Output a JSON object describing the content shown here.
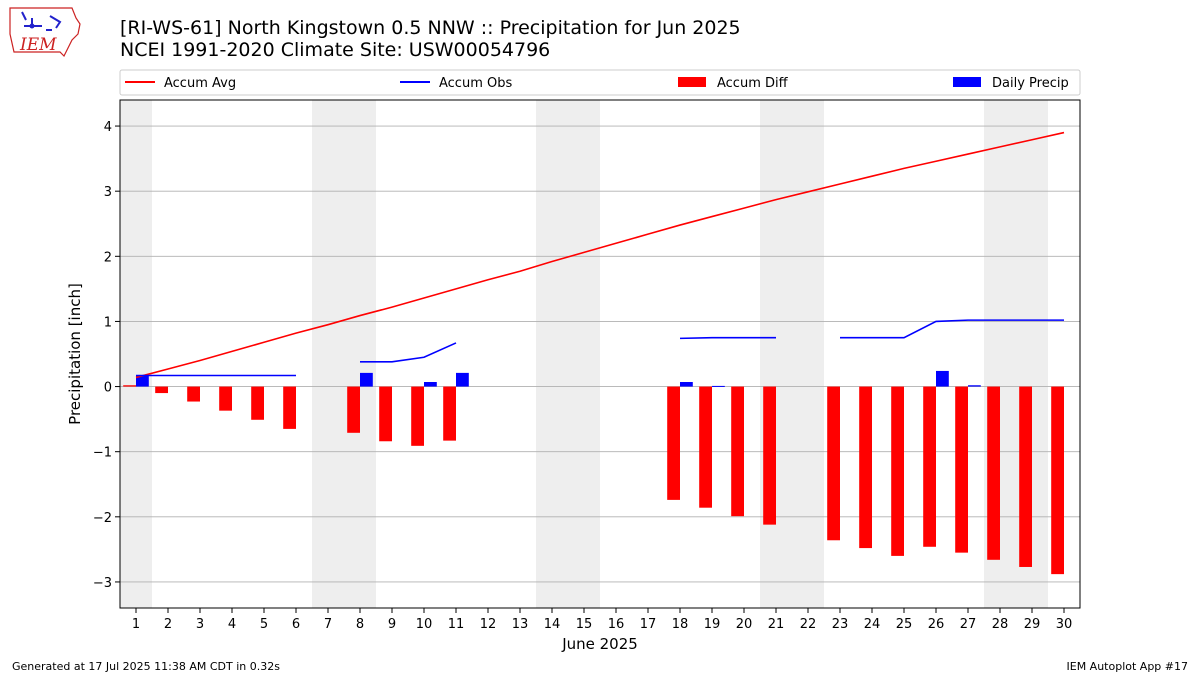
{
  "header": {
    "title_line1": "[RI-WS-61] North Kingstown 0.5 NNW :: Precipitation for Jun 2025",
    "title_line2": "NCEI 1991-2020 Climate Site: USW00054796"
  },
  "logo": {
    "text": "IEM",
    "icon": "iowa-state-logo"
  },
  "footer": {
    "generated": "Generated at 17 Jul 2025 11:38 AM CDT in 0.32s",
    "app": "IEM Autoplot App #17"
  },
  "colors": {
    "accum_avg": "#ff0000",
    "accum_obs": "#0000ff",
    "accum_diff": "#ff0000",
    "daily_precip": "#0000ff",
    "weekend_shade": "#eeeeee",
    "grid": "#b0b0b0"
  },
  "chart_data": {
    "type": "bar",
    "xlabel": "June 2025",
    "ylabel": "Precipitation [inch]",
    "ylim": [
      -3.4,
      4.4
    ],
    "yticks": [
      4,
      3,
      2,
      1,
      0,
      -1,
      -2,
      -3
    ],
    "ytick_labels": [
      "4",
      "3",
      "2",
      "1",
      "0",
      "−1",
      "−2",
      "−3"
    ],
    "grid": "horizontal",
    "legend_position": "top",
    "days": [
      1,
      2,
      3,
      4,
      5,
      6,
      7,
      8,
      9,
      10,
      11,
      12,
      13,
      14,
      15,
      16,
      17,
      18,
      19,
      20,
      21,
      22,
      23,
      24,
      25,
      26,
      27,
      28,
      29,
      30
    ],
    "weekend_days": [
      1,
      7,
      8,
      14,
      15,
      21,
      22,
      28,
      29
    ],
    "legend": [
      {
        "label": "Accum Avg",
        "kind": "line",
        "color": "#ff0000"
      },
      {
        "label": "Accum Obs",
        "kind": "line",
        "color": "#0000ff"
      },
      {
        "label": "Accum Diff",
        "kind": "bar",
        "color": "#ff0000"
      },
      {
        "label": "Daily Precip",
        "kind": "bar",
        "color": "#0000ff"
      }
    ],
    "series": [
      {
        "name": "Accum Avg",
        "values": [
          0.14,
          0.27,
          0.4,
          0.54,
          0.68,
          0.82,
          0.95,
          1.09,
          1.22,
          1.36,
          1.5,
          1.64,
          1.77,
          1.92,
          2.06,
          2.2,
          2.34,
          2.48,
          2.61,
          2.74,
          2.87,
          2.99,
          3.11,
          3.23,
          3.35,
          3.46,
          3.57,
          3.68,
          3.79,
          3.9
        ]
      },
      {
        "name": "Accum Obs",
        "values": [
          0.17,
          0.17,
          0.17,
          0.17,
          0.17,
          0.17,
          null,
          0.38,
          0.38,
          0.45,
          0.67,
          null,
          null,
          null,
          null,
          null,
          null,
          0.74,
          0.75,
          0.75,
          0.75,
          null,
          0.75,
          0.75,
          0.75,
          1.0,
          1.02,
          1.02,
          1.02,
          1.02
        ]
      },
      {
        "name": "Accum Diff",
        "values": [
          0.02,
          -0.1,
          -0.23,
          -0.37,
          -0.51,
          -0.65,
          null,
          -0.71,
          -0.84,
          -0.91,
          -0.83,
          null,
          null,
          null,
          null,
          null,
          null,
          -1.74,
          -1.86,
          -1.99,
          -2.12,
          null,
          -2.36,
          -2.48,
          -2.6,
          -2.46,
          -2.55,
          -2.66,
          -2.77,
          -2.88
        ]
      },
      {
        "name": "Daily Precip",
        "values": [
          0.17,
          0,
          0,
          0,
          0,
          0,
          null,
          0.21,
          0,
          0.07,
          0.21,
          null,
          null,
          null,
          null,
          null,
          null,
          0.07,
          0.01,
          0,
          0,
          null,
          0,
          0,
          0,
          0.24,
          0.02,
          0,
          0,
          0
        ]
      }
    ]
  }
}
